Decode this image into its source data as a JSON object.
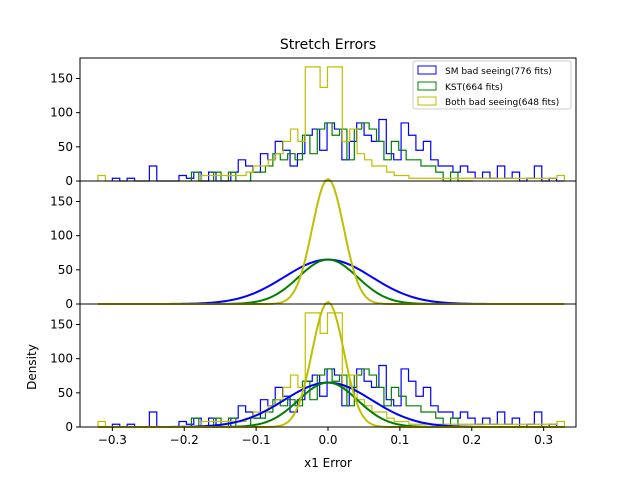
{
  "chart_data": {
    "type": "histogram",
    "title": "Stretch Errors",
    "xlabel": "x1 Error",
    "ylabel": "Density",
    "xlim": [
      -0.345,
      0.345
    ],
    "ylim": [
      0,
      180
    ],
    "xticks": [
      -0.3,
      -0.2,
      -0.1,
      0.0,
      0.1,
      0.2,
      0.3
    ],
    "xtick_labels": [
      "−0.3",
      "−0.2",
      "−0.1",
      "0.0",
      "0.1",
      "0.2",
      "0.3"
    ],
    "yticks": [
      0,
      50,
      100,
      150
    ],
    "ytick_labels": [
      "0",
      "50",
      "100",
      "150"
    ],
    "legend": {
      "location": "upper right",
      "entries": [
        "SM bad seeing(776 fits)",
        "KST(664 fits)",
        "Both bad seeing(648 fits)"
      ]
    },
    "series": [
      {
        "name": "SM bad seeing(776 fits)",
        "color": "#0000ff",
        "mean": 0.0,
        "sigma": 0.061,
        "bin_start": -0.3,
        "bin_width": 0.0103,
        "density": [
          4,
          0,
          4,
          0,
          0,
          22,
          0,
          0,
          0,
          8,
          4,
          13,
          0,
          13,
          0,
          0,
          13,
          31,
          22,
          13,
          40,
          31,
          58,
          45,
          22,
          40,
          67,
          76,
          45,
          85,
          76,
          31,
          58,
          85,
          67,
          58,
          90,
          40,
          31,
          85,
          67,
          45,
          58,
          31,
          22,
          22,
          13,
          22,
          13,
          4,
          13,
          4,
          22,
          4,
          13,
          0,
          4,
          22,
          0,
          4,
          0
        ],
        "fit_peak": 65
      },
      {
        "name": "KST(664 fits)",
        "color": "#008000",
        "mean": 0.0,
        "sigma": 0.041,
        "bin_start": -0.19,
        "bin_width": 0.0103,
        "density": [
          13,
          0,
          0,
          13,
          0,
          13,
          0,
          0,
          13,
          13,
          22,
          40,
          31,
          40,
          31,
          67,
          40,
          76,
          85,
          67,
          76,
          31,
          76,
          85,
          76,
          58,
          31,
          58,
          45,
          31,
          31,
          22,
          22,
          13,
          0,
          13,
          0,
          0
        ],
        "fit_peak": 65
      },
      {
        "name": "Both bad seeing(648 fits)",
        "color": "#bfbf00",
        "mean": 0.0,
        "sigma": 0.022,
        "bin_start": -0.32,
        "bin_width": 0.0103,
        "density": [
          8,
          0,
          0,
          0,
          0,
          0,
          0,
          0,
          0,
          0,
          0,
          0,
          0,
          0,
          8,
          8,
          8,
          8,
          8,
          8,
          13,
          22,
          22,
          31,
          40,
          58,
          76,
          58,
          167,
          167,
          137,
          167,
          167,
          58,
          76,
          40,
          31,
          22,
          22,
          13,
          8,
          8,
          4,
          4,
          4,
          4,
          4,
          4,
          4,
          4,
          4,
          4,
          4,
          4,
          4,
          4,
          4,
          4,
          4,
          4,
          4,
          4,
          8
        ],
        "fit_peak": 183
      }
    ]
  }
}
